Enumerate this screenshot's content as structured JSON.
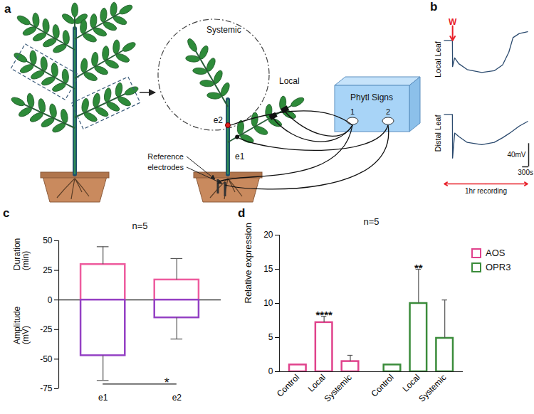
{
  "diagram": {
    "panel": "a",
    "circle_label": "Systemic",
    "branch_label": "Local",
    "device": {
      "label": "Phytl Signs",
      "channels": [
        "1",
        "2"
      ]
    },
    "electrodes": [
      "e2",
      "e1"
    ],
    "reference": "Reference electrodes"
  },
  "chart_data": [
    {
      "panel": "b",
      "type": "line",
      "x": [
        -400,
        -10,
        0,
        100,
        300,
        700,
        1400,
        2000,
        2400,
        2700,
        2900,
        3200,
        3600
      ],
      "series": [
        {
          "name": "Local Leaf",
          "color": "#2b4a6e",
          "values": [
            0,
            0,
            -45,
            -30,
            -40,
            -50,
            -55,
            -52,
            -42,
            -20,
            5,
            12,
            15
          ]
        },
        {
          "name": "Distal Leaf",
          "color": "#2b4a6e",
          "values": [
            0,
            0,
            -75,
            -32,
            -38,
            -48,
            -52,
            -48,
            -40,
            -33,
            -28,
            -20,
            -12
          ]
        }
      ],
      "xlim": [
        -450,
        3650
      ],
      "ylim": [
        -90,
        25
      ],
      "tick_labels": false,
      "annotations": [
        {
          "text": "W",
          "x": 0,
          "series": "Local Leaf",
          "color": "#e8202a"
        }
      ],
      "scale_bar": {
        "x": 300,
        "x_label": "300s",
        "y": 40,
        "y_label": "40mV",
        "series": "Distal Leaf"
      },
      "span": {
        "label": "1hr recording",
        "x": [
          -400,
          3600
        ],
        "color": "#e8202a",
        "series": "Distal Leaf"
      }
    },
    {
      "panel": "c",
      "type": "bar",
      "title": "n=5",
      "categories": [
        "e1",
        "e2"
      ],
      "series": [
        {
          "name": "Duration (min)",
          "color": "#ee5c9e",
          "values": [
            30,
            17
          ],
          "errors": [
            15,
            18
          ]
        },
        {
          "name": "Amplitude (mV)",
          "color": "#9440c4",
          "values": [
            -47,
            -15
          ],
          "errors": [
            21,
            18
          ]
        }
      ],
      "ylim": [
        -75,
        50
      ],
      "yticks": [
        -75,
        -50,
        -25,
        0,
        25,
        50
      ],
      "significance": [
        {
          "label": "*",
          "between": [
            "e1",
            "e2"
          ],
          "y": -71
        }
      ]
    },
    {
      "panel": "d",
      "type": "bar",
      "title": "n=5",
      "categories": [
        "Control",
        "Local",
        "Systemic"
      ],
      "series": [
        {
          "name": "AOS",
          "color": "#e0428c",
          "values": [
            1,
            7.2,
            1.5
          ],
          "errors": [
            null,
            0.9,
            0.9
          ],
          "significance": [
            null,
            "****",
            null
          ]
        },
        {
          "name": "OPR3",
          "color": "#3b8c3b",
          "values": [
            1,
            10,
            4.9
          ],
          "errors": [
            null,
            5,
            5.6
          ],
          "significance": [
            null,
            "**",
            null
          ]
        }
      ],
      "ylabel": "Relative expression",
      "ylim": [
        0,
        20
      ],
      "yticks": [
        0,
        5,
        10,
        15,
        20
      ],
      "legend": "right"
    }
  ]
}
